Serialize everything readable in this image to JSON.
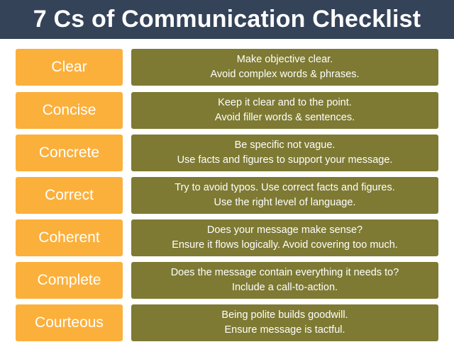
{
  "title": "7 Cs of Communication Checklist",
  "colors": {
    "header_bg": "#354359",
    "label_bg": "#fbb03b",
    "desc_bg": "#7e7a33",
    "text": "#ffffff"
  },
  "items": [
    {
      "label": "Clear",
      "line1": "Make objective clear.",
      "line2": "Avoid complex words & phrases."
    },
    {
      "label": "Concise",
      "line1": "Keep it clear and to the point.",
      "line2": "Avoid filler words & sentences."
    },
    {
      "label": "Concrete",
      "line1": "Be specific not vague.",
      "line2": "Use facts and figures to support your message."
    },
    {
      "label": "Correct",
      "line1": "Try to avoid typos. Use correct facts and figures.",
      "line2": "Use the right level of language."
    },
    {
      "label": "Coherent",
      "line1": "Does your message make sense?",
      "line2": "Ensure it flows logically. Avoid covering too much."
    },
    {
      "label": "Complete",
      "line1": "Does the message contain everything it needs to?",
      "line2": "Include a call-to-action."
    },
    {
      "label": "Courteous",
      "line1": "Being polite builds goodwill.",
      "line2": "Ensure message is tactful."
    }
  ]
}
